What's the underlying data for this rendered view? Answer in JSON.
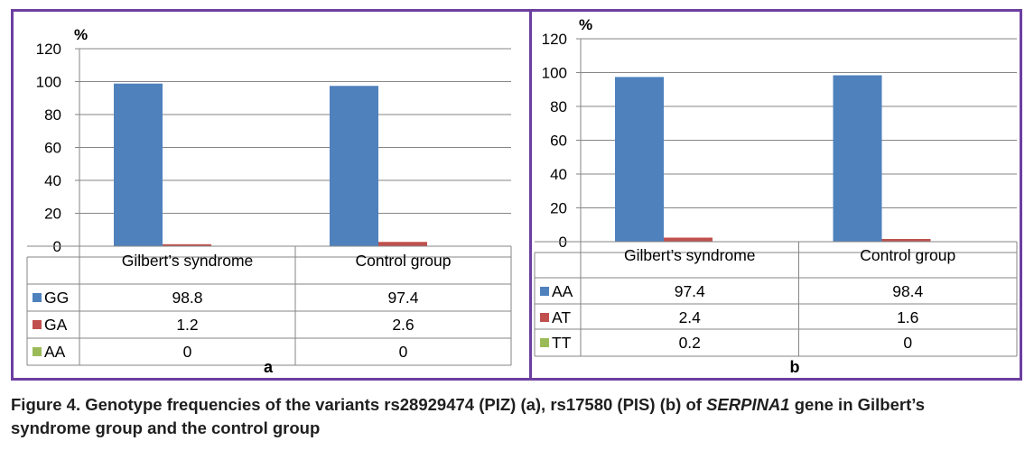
{
  "chart_data": [
    {
      "type": "bar",
      "panel_label": "a",
      "ylabel": "%",
      "ylim": [
        0,
        120
      ],
      "yticks": [
        0,
        20,
        40,
        60,
        80,
        100,
        120
      ],
      "grid": true,
      "legend": "table-left",
      "categories": [
        "Gilbert’s syndrome",
        "Control group"
      ],
      "series": [
        {
          "name": "GG",
          "values": [
            98.8,
            97.4
          ],
          "value_labels": [
            "98.8",
            "97.4"
          ],
          "color": "#4f81bd"
        },
        {
          "name": "GA",
          "values": [
            1.2,
            2.6
          ],
          "value_labels": [
            "1.2",
            "2.6"
          ],
          "color": "#c0504d"
        },
        {
          "name": "AA",
          "values": [
            0,
            0
          ],
          "value_labels": [
            "0",
            "0"
          ],
          "color": "#9bbb59"
        }
      ]
    },
    {
      "type": "bar",
      "panel_label": "b",
      "ylabel": "%",
      "ylim": [
        0,
        120
      ],
      "yticks": [
        0,
        20,
        40,
        60,
        80,
        100,
        120
      ],
      "grid": true,
      "legend": "table-left",
      "categories": [
        "Gilbert’s syndrome",
        "Control group"
      ],
      "series": [
        {
          "name": "AA",
          "values": [
            97.4,
            98.4
          ],
          "value_labels": [
            "97.4",
            "98.4"
          ],
          "color": "#4f81bd"
        },
        {
          "name": "AT",
          "values": [
            2.4,
            1.6
          ],
          "value_labels": [
            "2.4",
            "1.6"
          ],
          "color": "#c0504d"
        },
        {
          "name": "TT",
          "values": [
            0.2,
            0
          ],
          "value_labels": [
            "0.2",
            "0"
          ],
          "color": "#9bbb59"
        }
      ]
    }
  ],
  "caption": {
    "line1_before": "Figure 4. Genotype frequencies of the variants rs28929474 (PIZ) (a), rs17580 (PIS) (b) of ",
    "gene": "SERPINA1",
    "line1_after": " gene in Gilbert’s",
    "line2": "syndrome group and the control group"
  }
}
